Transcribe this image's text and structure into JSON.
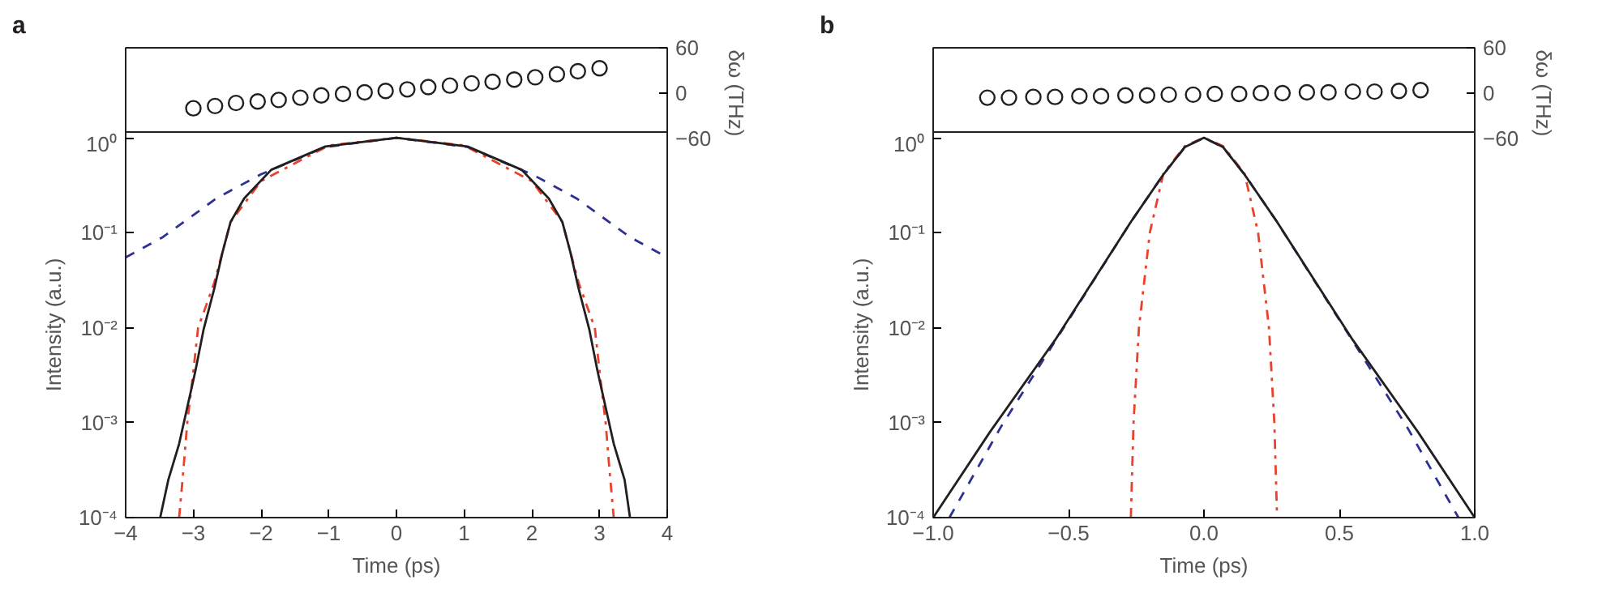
{
  "chart_data": [
    {
      "type": "scatter",
      "title": "a",
      "xlim": [
        -4,
        4
      ],
      "y2lim": [
        -60,
        60
      ],
      "y2ticks": [
        {
          "value": -60,
          "label": "−60"
        },
        {
          "value": 0,
          "label": "0"
        },
        {
          "value": 60,
          "label": "60"
        }
      ],
      "y2label": "δω (THz)",
      "tick_labels": "y",
      "marker": "circle",
      "series": [
        {
          "axis": "y2",
          "color": "#231f20",
          "x": [
            -3,
            -2.68,
            -2.37,
            -2.05,
            -1.74,
            -1.42,
            -1.11,
            -0.79,
            -0.47,
            -0.16,
            0.16,
            0.47,
            0.79,
            1.11,
            1.42,
            1.74,
            2.05,
            2.37,
            2.68,
            3
          ],
          "values": [
            -20,
            -17,
            -13,
            -11,
            -9,
            -6,
            -3,
            -1,
            1,
            3,
            5,
            8,
            10,
            13,
            15,
            18,
            21,
            25,
            29,
            33
          ]
        }
      ]
    },
    {
      "type": "line",
      "xlabel": "Time (ps)",
      "ylabel": "Intensity (a.u.)",
      "log": "y",
      "xlim": [
        -4,
        4
      ],
      "ylim": [
        0.0001,
        1.15
      ],
      "xticks": [
        {
          "value": -4,
          "label": "−4"
        },
        {
          "value": -3,
          "label": "−3"
        },
        {
          "value": -2,
          "label": "−2"
        },
        {
          "value": -1,
          "label": "−1"
        },
        0,
        1,
        2,
        3,
        4
      ],
      "yticks": [
        {
          "value": 0.0001,
          "label": "10⁻⁴"
        },
        {
          "value": 0.001,
          "label": "10⁻³"
        },
        {
          "value": 0.01,
          "label": "10⁻²"
        },
        {
          "value": 0.1,
          "label": "10⁻¹"
        },
        {
          "value": 1,
          "label": "10⁰"
        }
      ],
      "series": [
        {
          "color": "#2e3192",
          "line_style": "dashed",
          "x": [
            -4,
            -3.45,
            -2.66,
            -2.01,
            -1.05,
            0,
            1.05,
            2.01,
            2.66,
            3.45,
            4
          ],
          "values": [
            0.055,
            0.09,
            0.23,
            0.41,
            0.8,
            1,
            0.8,
            0.41,
            0.23,
            0.09,
            0.055
          ]
        },
        {
          "color": "#e8412c",
          "line_style": "dashdot",
          "x": [
            -3.21,
            -3.15,
            -3.09,
            -3.01,
            -2.93,
            -2.8,
            -2.69,
            -2.45,
            -2.0,
            -1.0,
            0,
            1.0,
            2.0,
            2.45,
            2.69,
            2.8,
            2.93,
            3.01,
            3.09,
            3.15,
            3.21
          ],
          "values": [
            0.0001,
            0.0003,
            0.001,
            0.003,
            0.01,
            0.018,
            0.03,
            0.13,
            0.35,
            0.83,
            1,
            0.83,
            0.35,
            0.13,
            0.03,
            0.018,
            0.01,
            0.003,
            0.001,
            0.0003,
            0.0001
          ]
        },
        {
          "color": "#231f20",
          "line_style": "solid",
          "x": [
            -3.49,
            -3.37,
            -3.21,
            -3.09,
            -2.97,
            -2.85,
            -2.69,
            -2.57,
            -2.45,
            -2.25,
            -1.85,
            -1.05,
            0,
            1.05,
            1.85,
            2.25,
            2.45,
            2.57,
            2.69,
            2.85,
            2.97,
            3.09,
            3.21,
            3.37,
            3.45
          ],
          "values": [
            0.0001,
            0.00025,
            0.0006,
            0.00145,
            0.0035,
            0.0095,
            0.026,
            0.062,
            0.13,
            0.23,
            0.46,
            0.81,
            1,
            0.81,
            0.46,
            0.23,
            0.13,
            0.062,
            0.026,
            0.0095,
            0.0035,
            0.00145,
            0.0006,
            0.00025,
            0.0001
          ]
        }
      ]
    },
    {
      "type": "scatter",
      "title": "b",
      "xlim": [
        -1,
        1
      ],
      "y2lim": [
        -60,
        60
      ],
      "y2ticks": [
        {
          "value": -60,
          "label": "−60"
        },
        {
          "value": 0,
          "label": "0"
        },
        {
          "value": 60,
          "label": "60"
        }
      ],
      "y2label": "δω (THz)",
      "tick_labels": "y",
      "marker": "circle",
      "series": [
        {
          "axis": "y2",
          "color": "#231f20",
          "x": [
            -0.8,
            -0.72,
            -0.63,
            -0.55,
            -0.46,
            -0.38,
            -0.29,
            -0.21,
            -0.13,
            -0.04,
            0.04,
            0.13,
            0.21,
            0.29,
            0.38,
            0.46,
            0.55,
            0.63,
            0.72,
            0.8
          ],
          "values": [
            -6,
            -6,
            -5,
            -5,
            -4,
            -4,
            -3,
            -3,
            -2,
            -2,
            -1,
            -1,
            0,
            0,
            1,
            1,
            2,
            2,
            3,
            4
          ]
        }
      ]
    },
    {
      "type": "line",
      "xlabel": "Time (ps)",
      "ylabel": "Intensity (a.u.)",
      "log": "y",
      "xlim": [
        -1,
        1
      ],
      "ylim": [
        0.0001,
        1.15
      ],
      "xticks": [
        {
          "value": -1,
          "label": "−1.0"
        },
        {
          "value": -0.5,
          "label": "−0.5"
        },
        {
          "value": 0,
          "label": "0.0"
        },
        {
          "value": 0.5,
          "label": "0.5"
        },
        {
          "value": 1,
          "label": "1.0"
        }
      ],
      "yticks": [
        {
          "value": 0.0001,
          "label": "10⁻⁴"
        },
        {
          "value": 0.001,
          "label": "10⁻³"
        },
        {
          "value": 0.01,
          "label": "10⁻²"
        },
        {
          "value": 0.1,
          "label": "10⁻¹"
        },
        {
          "value": 1,
          "label": "10⁰"
        }
      ],
      "series": [
        {
          "color": "#e8412c",
          "line_style": "dashdot",
          "x": [
            -0.27,
            -0.26,
            -0.24,
            -0.2,
            -0.15,
            -0.07,
            0,
            0.07,
            0.15,
            0.2,
            0.24,
            0.26,
            0.27
          ],
          "values": [
            0.0001,
            0.001,
            0.01,
            0.1,
            0.42,
            0.82,
            1,
            0.82,
            0.42,
            0.1,
            0.01,
            0.001,
            0.0001
          ]
        },
        {
          "color": "#2e3192",
          "line_style": "dashed",
          "x": [
            -0.94,
            -0.75,
            -0.55,
            -0.27,
            -0.15,
            -0.07,
            0,
            0.07,
            0.15,
            0.27,
            0.55,
            0.75,
            0.94
          ],
          "values": [
            0.0001,
            0.0009,
            0.0072,
            0.13,
            0.41,
            0.8,
            1,
            0.8,
            0.41,
            0.13,
            0.0072,
            0.0009,
            0.0001
          ]
        },
        {
          "color": "#231f20",
          "line_style": "solid",
          "x": [
            -1.0,
            -0.79,
            -0.55,
            -0.27,
            -0.15,
            -0.07,
            0,
            0.07,
            0.15,
            0.27,
            0.55,
            0.79,
            1.0
          ],
          "values": [
            0.0001,
            0.0008,
            0.0074,
            0.13,
            0.41,
            0.8,
            1,
            0.8,
            0.41,
            0.13,
            0.0074,
            0.0008,
            0.0001
          ]
        }
      ]
    }
  ]
}
